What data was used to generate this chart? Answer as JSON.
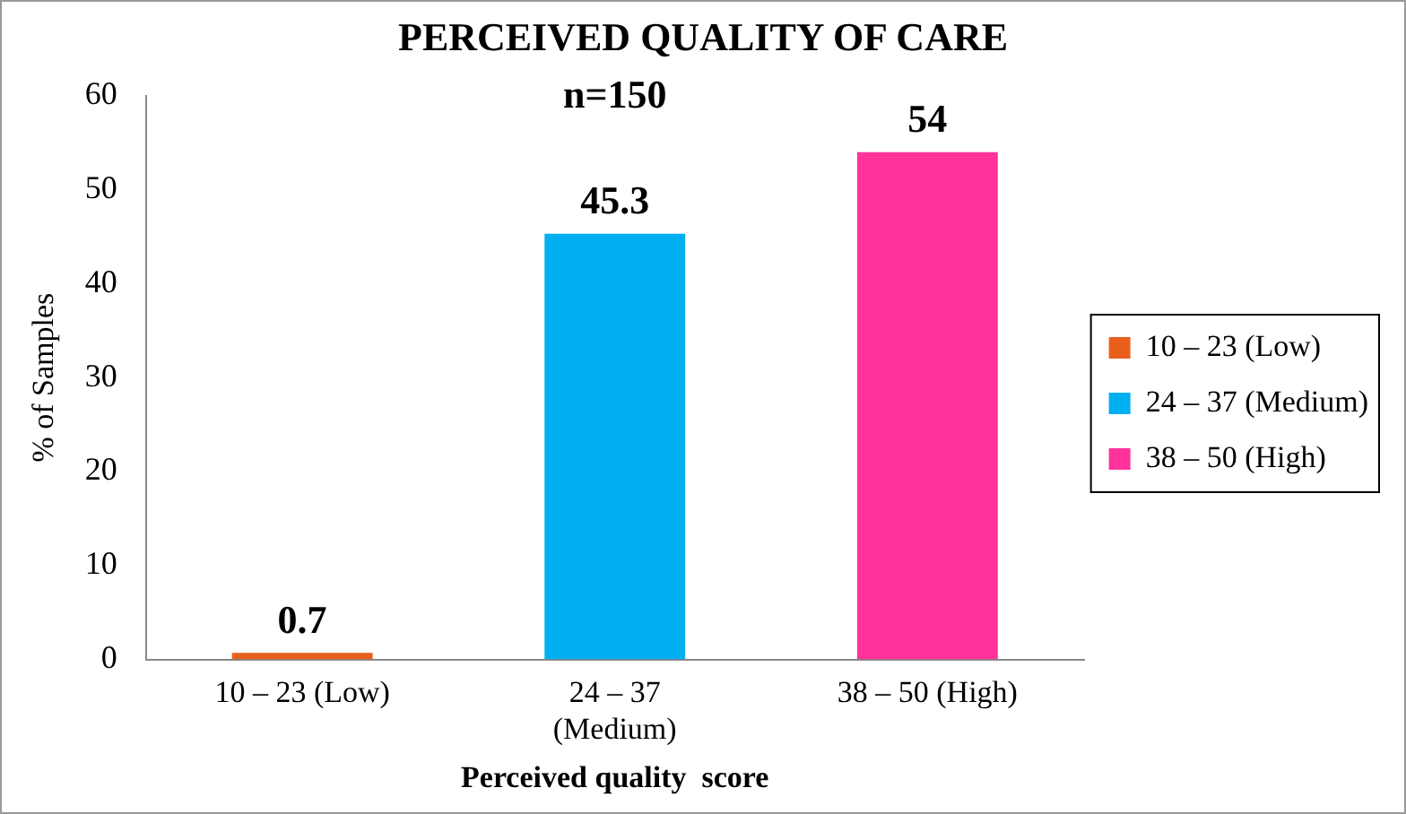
{
  "chart_data": {
    "type": "bar",
    "title": "PERCEIVED QUALITY OF CARE",
    "xlabel": "Perceived quality  score",
    "ylabel": "% of Samples",
    "categories": [
      "10 – 23 (Low)",
      "24 – 37 (Medium)",
      "38 – 50 (High)"
    ],
    "series": [
      {
        "name": "10 – 23 (Low)",
        "color": "#e8601c",
        "values": [
          0.7,
          null,
          null
        ]
      },
      {
        "name": "24 – 37 (Medium)",
        "color": "#00b0f0",
        "values": [
          null,
          45.3,
          null
        ]
      },
      {
        "name": "38 – 50 (High)",
        "color": "#ff3399",
        "values": [
          null,
          null,
          54
        ]
      }
    ],
    "ylim": [
      0,
      60
    ],
    "yticks": [
      0,
      10,
      20,
      30,
      40,
      50,
      60
    ],
    "grid": false,
    "legend": "right",
    "data_labels": true,
    "annotations": [
      "n=150"
    ]
  }
}
